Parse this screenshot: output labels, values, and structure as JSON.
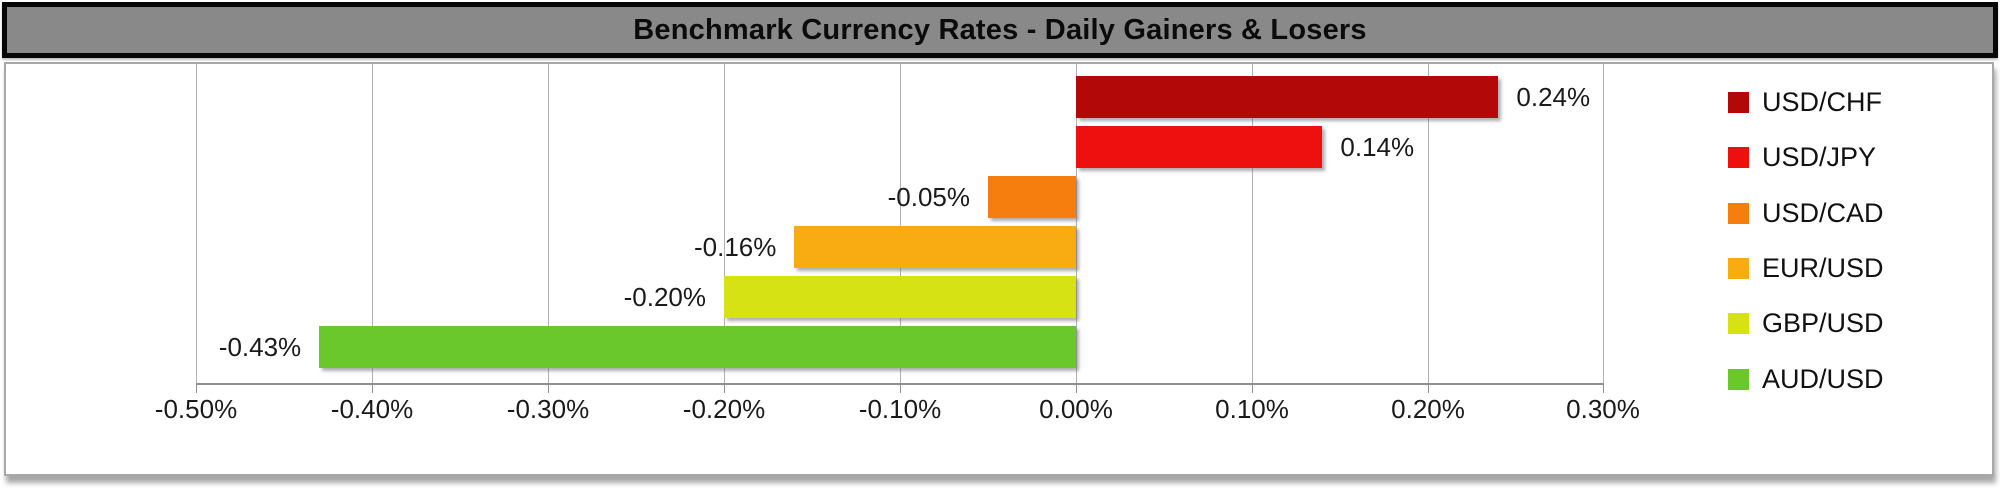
{
  "title_bar": {
    "title": "Benchmark Currency Rates - Daily Gainers & Losers"
  },
  "chart_data": {
    "type": "bar",
    "orientation": "horizontal",
    "title": "Benchmark Currency Rates - Daily Gainers & Losers",
    "categories": [
      "USD/CHF",
      "USD/JPY",
      "USD/CAD",
      "EUR/USD",
      "GBP/USD",
      "AUD/USD"
    ],
    "series": [
      {
        "name": "USD/CHF",
        "value": 0.24,
        "label": "0.24%",
        "color": "#B30808"
      },
      {
        "name": "USD/JPY",
        "value": 0.14,
        "label": "0.14%",
        "color": "#EE0F0F"
      },
      {
        "name": "USD/CAD",
        "value": -0.05,
        "label": "-0.05%",
        "color": "#F67E0E"
      },
      {
        "name": "EUR/USD",
        "value": -0.16,
        "label": "-0.16%",
        "color": "#F8AC12"
      },
      {
        "name": "GBP/USD",
        "value": -0.2,
        "label": "-0.20%",
        "color": "#D6E214"
      },
      {
        "name": "AUD/USD",
        "value": -0.43,
        "label": "-0.43%",
        "color": "#6AC82D"
      }
    ],
    "x_tick_labels": [
      "-0.50%",
      "-0.40%",
      "-0.30%",
      "-0.20%",
      "-0.10%",
      "0.00%",
      "0.10%",
      "0.20%",
      "0.30%"
    ],
    "xlim": [
      -0.5,
      0.3
    ],
    "x_unit": "%",
    "grid": true,
    "legend_position": "right",
    "colors": {
      "title_bar_bg": "#898989",
      "title_bar_border": "#070707",
      "panel_border": "#A8A8A8",
      "gridline": "#B0B0B0",
      "axis_line": "#8F8F8F",
      "text": "#1A1A1A"
    }
  }
}
